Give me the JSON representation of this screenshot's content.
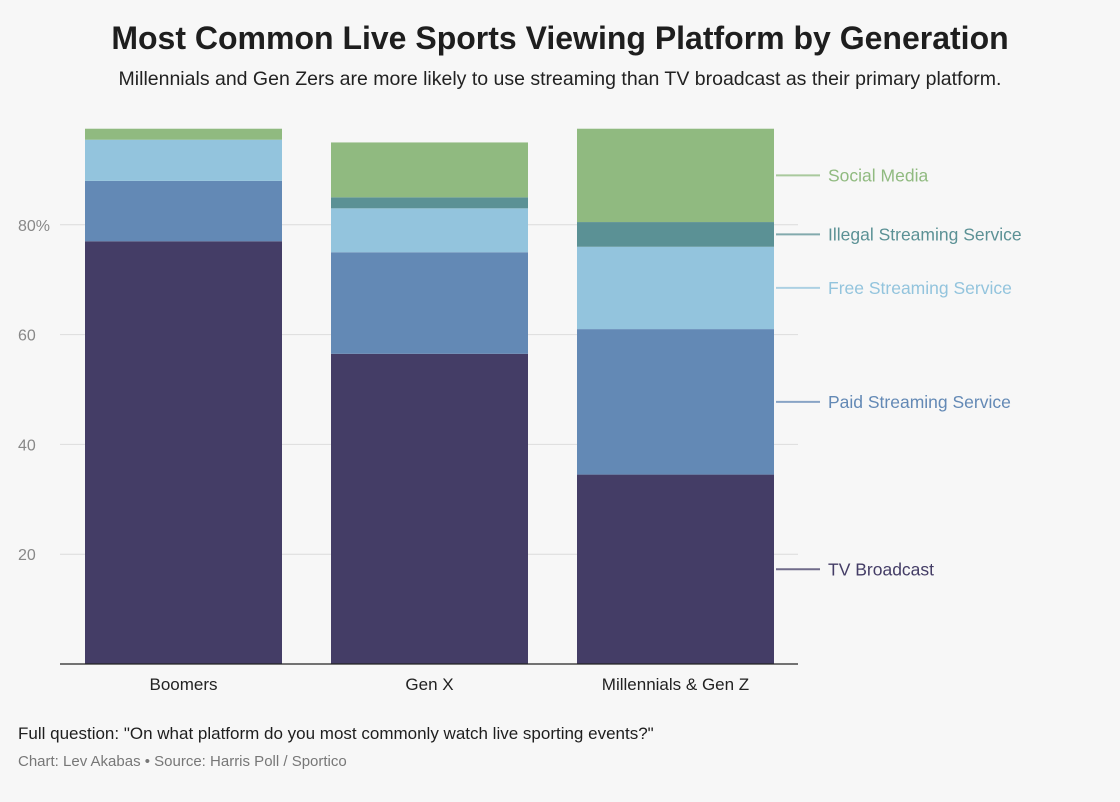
{
  "title": "Most Common Live Sports Viewing Platform by Generation",
  "subtitle": "Millennials and Gen Zers are more likely to use streaming than TV broadcast as their primary platform.",
  "footer": {
    "question": "Full question: \"On what platform do you most commonly watch live sporting events?\"",
    "credit": "Chart: Lev Akabas • Source: Harris Poll / Sportico"
  },
  "chart_data": {
    "type": "bar",
    "stacked": true,
    "categories": [
      "Boomers",
      "Gen X",
      "Millennials & Gen Z"
    ],
    "series": [
      {
        "name": "TV Broadcast",
        "color": "#443d66",
        "label_color": "#443d66",
        "values": [
          77,
          56.5,
          34.5
        ]
      },
      {
        "name": "Paid Streaming Service",
        "color": "#6389b5",
        "label_color": "#6389b5",
        "values": [
          11,
          18.5,
          26.5
        ]
      },
      {
        "name": "Free Streaming Service",
        "color": "#93c4dd",
        "label_color": "#93c4dd",
        "values": [
          7.5,
          8,
          15
        ]
      },
      {
        "name": "Illegal Streaming Service",
        "color": "#5b9195",
        "label_color": "#5b9195",
        "values": [
          0,
          2,
          4.5
        ]
      },
      {
        "name": "Social Media",
        "color": "#90ba80",
        "label_color": "#90ba80",
        "values": [
          2,
          10,
          17
        ]
      }
    ],
    "y_ticks": [
      {
        "value": 20,
        "label": "20"
      },
      {
        "value": 40,
        "label": "40"
      },
      {
        "value": 60,
        "label": "60"
      },
      {
        "value": 80,
        "label": "80%"
      }
    ],
    "ylim": [
      0,
      100
    ],
    "grid": true,
    "legend": "right, direct labels"
  }
}
